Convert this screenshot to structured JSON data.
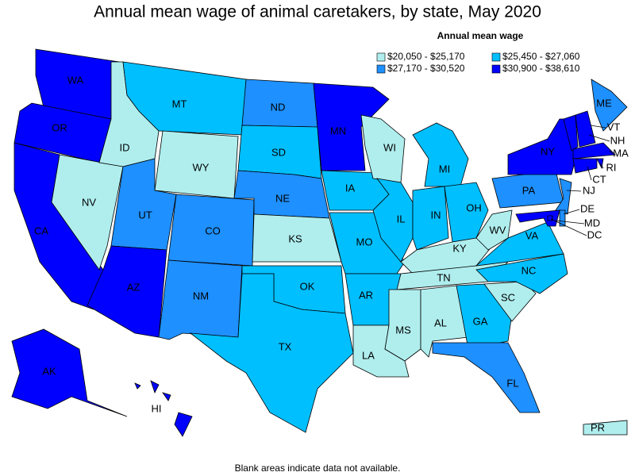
{
  "title": "Annual mean wage of animal caretakers, by state, May 2020",
  "legend": {
    "title": "Annual mean wage",
    "items": [
      {
        "label": "$20,050 - $25,170",
        "color": "#b0eeee"
      },
      {
        "label": "$25,450 - $27,060",
        "color": "#00bfff"
      },
      {
        "label": "$27,170 - $30,520",
        "color": "#1e90ff"
      },
      {
        "label": "$30,900 - $38,610",
        "color": "#0000ff"
      }
    ]
  },
  "states": [
    {
      "label": "WA",
      "color": "#0000ff"
    },
    {
      "label": "OR",
      "color": "#0000ff"
    },
    {
      "label": "CA",
      "color": "#0000ff"
    },
    {
      "label": "NV",
      "color": "#b0eeee"
    },
    {
      "label": "ID",
      "color": "#b0eeee"
    },
    {
      "label": "MT",
      "color": "#00bfff"
    },
    {
      "label": "WY",
      "color": "#b0eeee"
    },
    {
      "label": "UT",
      "color": "#1e90ff"
    },
    {
      "label": "CO",
      "color": "#1e90ff"
    },
    {
      "label": "AZ",
      "color": "#0000ff"
    },
    {
      "label": "NM",
      "color": "#1e90ff"
    },
    {
      "label": "ND",
      "color": "#1e90ff"
    },
    {
      "label": "SD",
      "color": "#00bfff"
    },
    {
      "label": "NE",
      "color": "#1e90ff"
    },
    {
      "label": "KS",
      "color": "#b0eeee"
    },
    {
      "label": "OK",
      "color": "#00bfff"
    },
    {
      "label": "TX",
      "color": "#00bfff"
    },
    {
      "label": "MN",
      "color": "#0000ff"
    },
    {
      "label": "IA",
      "color": "#00bfff"
    },
    {
      "label": "MO",
      "color": "#00bfff"
    },
    {
      "label": "AR",
      "color": "#00bfff"
    },
    {
      "label": "LA",
      "color": "#b0eeee"
    },
    {
      "label": "WI",
      "color": "#b0eeee"
    },
    {
      "label": "IL",
      "color": "#00bfff"
    },
    {
      "label": "MI",
      "color": "#00bfff"
    },
    {
      "label": "IN",
      "color": "#00bfff"
    },
    {
      "label": "OH",
      "color": "#00bfff"
    },
    {
      "label": "KY",
      "color": "#b0eeee"
    },
    {
      "label": "TN",
      "color": "#b0eeee"
    },
    {
      "label": "MS",
      "color": "#b0eeee"
    },
    {
      "label": "AL",
      "color": "#b0eeee"
    },
    {
      "label": "GA",
      "color": "#00bfff"
    },
    {
      "label": "FL",
      "color": "#1e90ff"
    },
    {
      "label": "SC",
      "color": "#b0eeee"
    },
    {
      "label": "NC",
      "color": "#00bfff"
    },
    {
      "label": "VA",
      "color": "#00bfff"
    },
    {
      "label": "WV",
      "color": "#b0eeee"
    },
    {
      "label": "PA",
      "color": "#1e90ff"
    },
    {
      "label": "NY",
      "color": "#0000ff"
    },
    {
      "label": "ME",
      "color": "#1e90ff"
    },
    {
      "label": "VT",
      "color": "#0000ff"
    },
    {
      "label": "NH",
      "color": "#0000ff"
    },
    {
      "label": "MA",
      "color": "#0000ff"
    },
    {
      "label": "RI",
      "color": "#0000ff"
    },
    {
      "label": "CT",
      "color": "#0000ff"
    },
    {
      "label": "NJ",
      "color": "#1e90ff"
    },
    {
      "label": "DE",
      "color": "#1e90ff"
    },
    {
      "label": "MD",
      "color": "#0000ff"
    },
    {
      "label": "DC",
      "color": "#0000ff"
    },
    {
      "label": "AK",
      "color": "#0000ff"
    },
    {
      "label": "HI",
      "color": "#0000ff"
    },
    {
      "label": "PR",
      "color": "#b0eeee"
    }
  ],
  "footnote": "Blank areas indicate data not available."
}
